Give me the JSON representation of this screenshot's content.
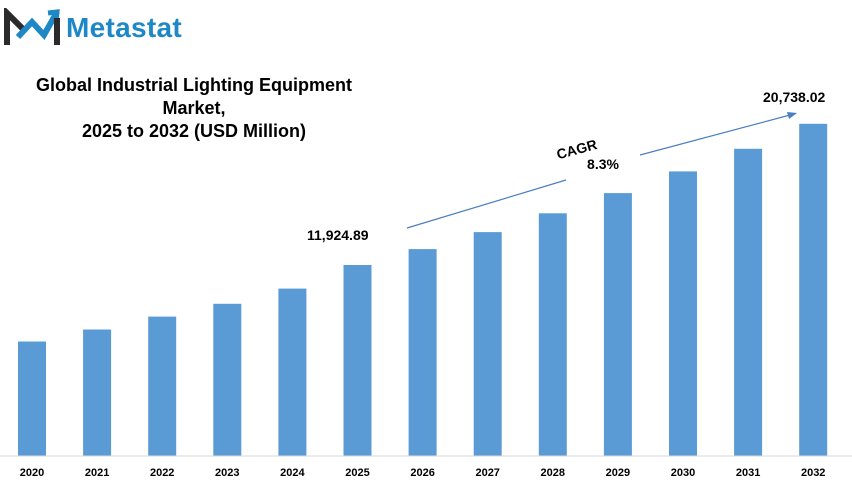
{
  "brand": {
    "name": "Metastat",
    "logo_icon": "metastat-m-logo-icon"
  },
  "colors": {
    "bar": "#5b9bd5",
    "brand": "#1e88c7",
    "logo_dark": "#2b2b2b",
    "arrow": "#4a7fc1"
  },
  "chart_data": {
    "type": "bar",
    "title": "Global Industrial Lighting Equipment Market,",
    "subtitle": "2025 to 2032 (USD Million)",
    "xlabel": "",
    "ylabel": "",
    "categories": [
      "2020",
      "2021",
      "2022",
      "2023",
      "2024",
      "2025",
      "2026",
      "2027",
      "2028",
      "2029",
      "2030",
      "2031",
      "2032"
    ],
    "values": [
      7150,
      7900,
      8700,
      9500,
      10450,
      11924.89,
      12920,
      13980,
      15150,
      16410,
      17770,
      19180,
      20738.02
    ],
    "ylim": [
      0,
      22600
    ],
    "grid": false,
    "legend": "none",
    "annotations": {
      "start_value": "11,924.89",
      "end_value": "20,738.02",
      "cagr_label": "CAGR",
      "cagr_value": "8.3%"
    }
  }
}
